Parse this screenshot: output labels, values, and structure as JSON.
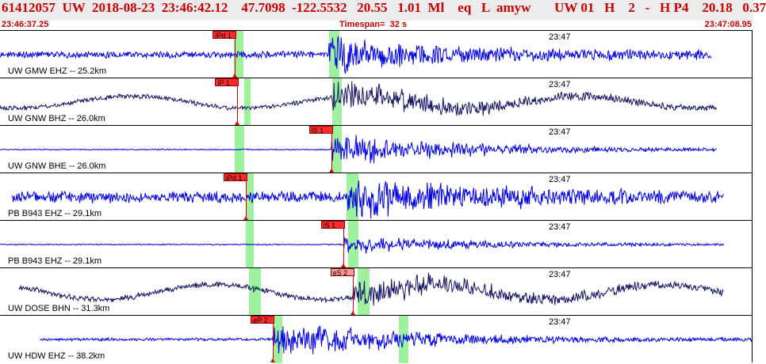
{
  "header": {
    "title": "61412057  UW  2018-08-23  23:46:42.12    47.7098  -122.5532   20.55   1.01  Ml    eq   L  amyw       UW 01   H    2   -   H P4    20.18   0.37",
    "start_time": "23:46:37.25",
    "timespan": "Timespan=  32 s",
    "end_time": "23:47:08.95"
  },
  "colors": {
    "header_text": "#cc0000",
    "trace_blue": "#0000e6",
    "trace_dark": "#151566",
    "pick_flag": "#ff2a2a",
    "phase_window": "#9ef29e"
  },
  "time_axis": {
    "start_s": 0,
    "end_s": 31.7,
    "minute_mark": "23:47",
    "minute_mark_s": 22.75
  },
  "traces": [
    {
      "label": "UW GMW EHZ -- 25.2km",
      "color": "blue",
      "shade_s": [
        9.85,
        10.25,
        13.85,
        14.3
      ],
      "start_s": 0.0,
      "end_s": 30.0,
      "picks": [
        {
          "text": "iPd 1",
          "t": 9.9,
          "style": "strong"
        }
      ],
      "arrival_s": 13.85,
      "amp": 0.12,
      "burst_amp": 0.55
    },
    {
      "label": "UW GNW BHZ -- 26.0km",
      "color": "dark",
      "shade_s": [
        10.3,
        10.55,
        14.0,
        14.4
      ],
      "start_s": 0.0,
      "end_s": 30.2,
      "picks": [
        {
          "text": "iP 1",
          "t": 10.0,
          "style": "strong"
        }
      ],
      "arrival_s": 14.0,
      "amp": 0.08,
      "burst_amp": 0.5
    },
    {
      "label": "UW GNW BHE -- 26.0km",
      "color": "blue",
      "shade_s": [
        9.9,
        10.3,
        14.0,
        14.4
      ],
      "start_s": 0.0,
      "end_s": 30.2,
      "picks": [
        {
          "text": "iS 1",
          "t": 13.95,
          "style": "strong"
        }
      ],
      "arrival_s": 13.95,
      "amp": 0.02,
      "burst_amp": 0.55
    },
    {
      "label": "PB B943 EHZ -- 29.1km",
      "color": "blue",
      "shade_s": [
        10.35,
        10.7,
        14.6,
        15.1
      ],
      "start_s": 0.5,
      "end_s": 30.5,
      "picks": [
        {
          "text": "iPd 1",
          "t": 10.35,
          "style": "strong"
        }
      ],
      "arrival_s": 14.6,
      "amp": 0.2,
      "burst_amp": 0.6
    },
    {
      "label": "PB B943 EHZ -- 29.1km",
      "color": "blue",
      "shade_s": [
        10.35,
        10.7,
        14.65,
        15.1
      ],
      "start_s": 0.0,
      "end_s": 30.5,
      "picks": [
        {
          "text": "iS 1",
          "t": 14.45,
          "style": "strong"
        }
      ],
      "arrival_s": 14.45,
      "amp": 0.02,
      "burst_amp": 0.3
    },
    {
      "label": "UW DOSE BHN -- 31.3km",
      "color": "dark",
      "shade_s": [
        10.5,
        11.0,
        15.05,
        15.55
      ],
      "start_s": 0.8,
      "end_s": 30.5,
      "picks": [
        {
          "text": "eS 2",
          "t": 14.85,
          "style": "light"
        }
      ],
      "arrival_s": 14.85,
      "amp": 0.1,
      "burst_amp": 0.45
    },
    {
      "label": "UW HDW EHZ -- 38.2km",
      "color": "blue",
      "shade_s": [
        11.5,
        11.9,
        16.8,
        17.2
      ],
      "start_s": 1.7,
      "end_s": 31.7,
      "picks": [
        {
          "text": "eP 2",
          "t": 11.5,
          "style": "strong"
        }
      ],
      "arrival_s": 11.5,
      "amp": 0.05,
      "burst_amp": 0.55
    }
  ]
}
